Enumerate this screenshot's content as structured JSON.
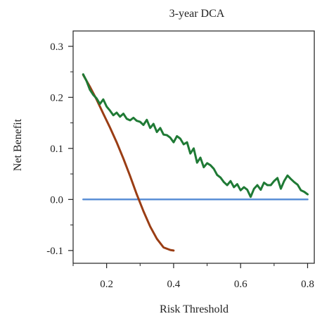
{
  "chart_data": {
    "type": "line",
    "title": "3-year DCA",
    "xlabel": "Risk Threshold",
    "ylabel": "Net Benefit",
    "xlim": [
      0.1,
      0.82
    ],
    "ylim": [
      -0.125,
      0.33
    ],
    "x_ticks": [
      0.2,
      0.4,
      0.6,
      0.8
    ],
    "x_tick_labels": [
      "0.2",
      "0.4",
      "0.6",
      "0.8"
    ],
    "x_minor_ticks": [
      0.1,
      0.3,
      0.5,
      0.7
    ],
    "y_ticks": [
      -0.1,
      0.0,
      0.1,
      0.2,
      0.3
    ],
    "y_tick_labels": [
      "-0.1",
      "0.0",
      "0.1",
      "0.2",
      "0.3"
    ],
    "y_minor_ticks": [
      -0.05,
      0.05,
      0.15,
      0.25
    ],
    "grid": false,
    "legend": "none",
    "series": [
      {
        "color": "#1f7a35",
        "x": [
          0.13,
          0.14,
          0.15,
          0.16,
          0.17,
          0.18,
          0.19,
          0.2,
          0.21,
          0.22,
          0.23,
          0.24,
          0.25,
          0.26,
          0.27,
          0.28,
          0.29,
          0.3,
          0.31,
          0.32,
          0.33,
          0.34,
          0.35,
          0.36,
          0.37,
          0.38,
          0.39,
          0.4,
          0.41,
          0.42,
          0.43,
          0.44,
          0.45,
          0.46,
          0.47,
          0.48,
          0.49,
          0.5,
          0.51,
          0.52,
          0.53,
          0.54,
          0.55,
          0.56,
          0.57,
          0.58,
          0.59,
          0.6,
          0.61,
          0.62,
          0.63,
          0.64,
          0.65,
          0.66,
          0.67,
          0.68,
          0.69,
          0.7,
          0.71,
          0.72,
          0.73,
          0.74,
          0.75,
          0.76,
          0.77,
          0.78,
          0.79,
          0.8
        ],
        "y": [
          0.245,
          0.232,
          0.215,
          0.205,
          0.198,
          0.187,
          0.196,
          0.182,
          0.174,
          0.165,
          0.17,
          0.162,
          0.168,
          0.158,
          0.155,
          0.16,
          0.154,
          0.152,
          0.146,
          0.156,
          0.14,
          0.148,
          0.132,
          0.14,
          0.127,
          0.126,
          0.121,
          0.112,
          0.124,
          0.119,
          0.108,
          0.112,
          0.09,
          0.1,
          0.072,
          0.082,
          0.063,
          0.071,
          0.067,
          0.06,
          0.048,
          0.043,
          0.034,
          0.028,
          0.036,
          0.024,
          0.03,
          0.018,
          0.024,
          0.019,
          0.005,
          0.021,
          0.028,
          0.019,
          0.033,
          0.028,
          0.028,
          0.036,
          0.042,
          0.021,
          0.036,
          0.047,
          0.04,
          0.034,
          0.029,
          0.018,
          0.015,
          0.01
        ]
      },
      {
        "color": "#9a3d14",
        "x": [
          0.13,
          0.15,
          0.17,
          0.19,
          0.21,
          0.23,
          0.25,
          0.27,
          0.29,
          0.31,
          0.33,
          0.35,
          0.37,
          0.39,
          0.4
        ],
        "y": [
          0.244,
          0.221,
          0.196,
          0.168,
          0.141,
          0.112,
          0.08,
          0.046,
          0.01,
          -0.023,
          -0.053,
          -0.077,
          -0.094,
          -0.099,
          -0.1
        ]
      },
      {
        "color": "#5b8fd6",
        "x": [
          0.13,
          0.8
        ],
        "y": [
          0.0,
          0.0
        ]
      }
    ]
  }
}
